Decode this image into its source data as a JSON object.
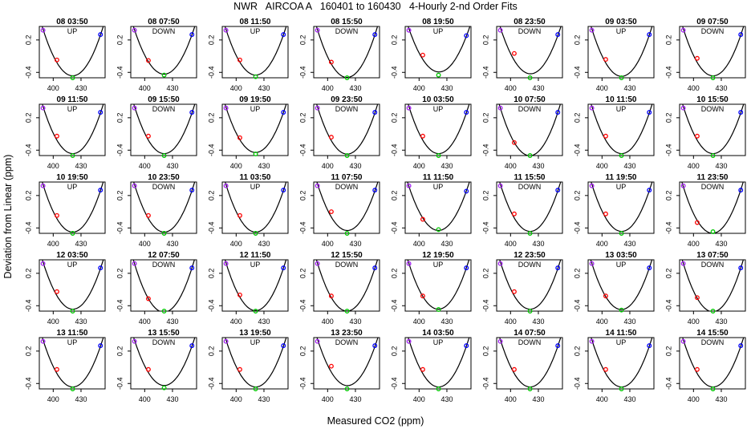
{
  "figure": {
    "title": "NWR   AIRCOA A   160401 to 160430   4-Hourly 2-nd Order Fits",
    "xlabel": "Measured CO2 (ppm)",
    "ylabel": "Deviation from Linear (ppm)"
  },
  "chart_data": {
    "type": "scatter",
    "layout": {
      "rows": 5,
      "cols": 8
    },
    "xlabel": "Measured CO2 (ppm)",
    "ylabel": "Deviation from Linear (ppm)",
    "xlim": [
      385,
      456
    ],
    "ylim": [
      -0.5,
      0.45
    ],
    "x_ticks": [
      400,
      430
    ],
    "y_ticks": [
      -0.4,
      0.2
    ],
    "x_tick_labels_shown_on_each_row": true,
    "y_tick_labels_shown_on_each_panel": true,
    "colors": {
      "standard_1": "#a020f0",
      "standard_2": "#ff0000",
      "standard_3": "#00c800",
      "standard_4": "#0000ff",
      "fit": "#000000"
    },
    "panels": [
      {
        "title": "08 03:50",
        "direction": "UP",
        "points": [
          {
            "x": 389,
            "y": 0.38
          },
          {
            "x": 404,
            "y": -0.17
          },
          {
            "x": 421,
            "y": -0.5
          },
          {
            "x": 451,
            "y": 0.3
          }
        ]
      },
      {
        "title": "08 07:50",
        "direction": "DOWN",
        "points": [
          {
            "x": 389,
            "y": 0.38
          },
          {
            "x": 404,
            "y": -0.18
          },
          {
            "x": 421,
            "y": -0.45
          },
          {
            "x": 451,
            "y": 0.3
          }
        ]
      },
      {
        "title": "08 11:50",
        "direction": "UP",
        "points": [
          {
            "x": 389,
            "y": 0.38
          },
          {
            "x": 404,
            "y": -0.17
          },
          {
            "x": 421,
            "y": -0.48
          },
          {
            "x": 451,
            "y": 0.3
          }
        ]
      },
      {
        "title": "08 15:50",
        "direction": "DOWN",
        "points": [
          {
            "x": 389,
            "y": 0.38
          },
          {
            "x": 404,
            "y": -0.21
          },
          {
            "x": 421,
            "y": -0.52
          },
          {
            "x": 451,
            "y": 0.3
          }
        ]
      },
      {
        "title": "08 19:50",
        "direction": "UP",
        "points": [
          {
            "x": 389,
            "y": 0.38
          },
          {
            "x": 404,
            "y": -0.08
          },
          {
            "x": 421,
            "y": -0.45
          },
          {
            "x": 451,
            "y": 0.28
          }
        ]
      },
      {
        "title": "08 23:50",
        "direction": "DOWN",
        "points": [
          {
            "x": 389,
            "y": 0.38
          },
          {
            "x": 404,
            "y": -0.05
          },
          {
            "x": 421,
            "y": -0.52
          },
          {
            "x": 451,
            "y": 0.3
          }
        ]
      },
      {
        "title": "09 03:50",
        "direction": "UP",
        "points": [
          {
            "x": 389,
            "y": 0.38
          },
          {
            "x": 404,
            "y": -0.16
          },
          {
            "x": 421,
            "y": -0.52
          },
          {
            "x": 451,
            "y": 0.3
          }
        ]
      },
      {
        "title": "09 07:50",
        "direction": "DOWN",
        "points": [
          {
            "x": 389,
            "y": 0.38
          },
          {
            "x": 404,
            "y": -0.14
          },
          {
            "x": 421,
            "y": -0.52
          },
          {
            "x": 451,
            "y": 0.3
          }
        ]
      },
      {
        "title": "09 11:50",
        "direction": "UP",
        "points": [
          {
            "x": 389,
            "y": 0.38
          },
          {
            "x": 404,
            "y": -0.14
          },
          {
            "x": 421,
            "y": -0.52
          },
          {
            "x": 451,
            "y": 0.3
          }
        ]
      },
      {
        "title": "09 15:50",
        "direction": "DOWN",
        "points": [
          {
            "x": 389,
            "y": 0.38
          },
          {
            "x": 404,
            "y": -0.14
          },
          {
            "x": 421,
            "y": -0.52
          },
          {
            "x": 451,
            "y": 0.3
          }
        ]
      },
      {
        "title": "09 19:50",
        "direction": "UP",
        "points": [
          {
            "x": 389,
            "y": 0.38
          },
          {
            "x": 404,
            "y": -0.17
          },
          {
            "x": 421,
            "y": -0.47
          },
          {
            "x": 451,
            "y": 0.3
          }
        ]
      },
      {
        "title": "09 23:50",
        "direction": "DOWN",
        "points": [
          {
            "x": 389,
            "y": 0.38
          },
          {
            "x": 404,
            "y": -0.16
          },
          {
            "x": 421,
            "y": -0.52
          },
          {
            "x": 451,
            "y": 0.3
          }
        ]
      },
      {
        "title": "10 03:50",
        "direction": "UP",
        "points": [
          {
            "x": 389,
            "y": 0.38
          },
          {
            "x": 404,
            "y": -0.14
          },
          {
            "x": 421,
            "y": -0.52
          },
          {
            "x": 451,
            "y": 0.3
          }
        ]
      },
      {
        "title": "10 07:50",
        "direction": "DOWN",
        "points": [
          {
            "x": 389,
            "y": 0.38
          },
          {
            "x": 404,
            "y": -0.26
          },
          {
            "x": 421,
            "y": -0.5
          },
          {
            "x": 451,
            "y": 0.3
          }
        ]
      },
      {
        "title": "10 11:50",
        "direction": "UP",
        "points": [
          {
            "x": 389,
            "y": 0.38
          },
          {
            "x": 404,
            "y": -0.14
          },
          {
            "x": 421,
            "y": -0.52
          },
          {
            "x": 451,
            "y": 0.3
          }
        ]
      },
      {
        "title": "10 15:50",
        "direction": "DOWN",
        "points": [
          {
            "x": 389,
            "y": 0.38
          },
          {
            "x": 404,
            "y": -0.14
          },
          {
            "x": 421,
            "y": -0.52
          },
          {
            "x": 451,
            "y": 0.3
          }
        ]
      },
      {
        "title": "10 19:50",
        "direction": "UP",
        "points": [
          {
            "x": 389,
            "y": 0.38
          },
          {
            "x": 404,
            "y": -0.17
          },
          {
            "x": 421,
            "y": -0.52
          },
          {
            "x": 451,
            "y": 0.3
          }
        ]
      },
      {
        "title": "10 23:50",
        "direction": "DOWN",
        "points": [
          {
            "x": 389,
            "y": 0.38
          },
          {
            "x": 404,
            "y": -0.17
          },
          {
            "x": 421,
            "y": -0.52
          },
          {
            "x": 451,
            "y": 0.3
          }
        ]
      },
      {
        "title": "11 03:50",
        "direction": "UP",
        "points": [
          {
            "x": 389,
            "y": 0.38
          },
          {
            "x": 404,
            "y": -0.17
          },
          {
            "x": 421,
            "y": -0.52
          },
          {
            "x": 451,
            "y": 0.3
          }
        ]
      },
      {
        "title": "11 07:50",
        "direction": "DOWN",
        "points": [
          {
            "x": 389,
            "y": 0.38
          },
          {
            "x": 404,
            "y": -0.1
          },
          {
            "x": 421,
            "y": -0.52
          },
          {
            "x": 451,
            "y": 0.3
          }
        ]
      },
      {
        "title": "11 11:50",
        "direction": "UP",
        "points": [
          {
            "x": 389,
            "y": 0.38
          },
          {
            "x": 404,
            "y": -0.24
          },
          {
            "x": 421,
            "y": -0.43
          },
          {
            "x": 451,
            "y": 0.28
          }
        ]
      },
      {
        "title": "11 15:50",
        "direction": "DOWN",
        "points": [
          {
            "x": 389,
            "y": 0.38
          },
          {
            "x": 404,
            "y": -0.14
          },
          {
            "x": 421,
            "y": -0.52
          },
          {
            "x": 451,
            "y": 0.3
          }
        ]
      },
      {
        "title": "11 19:50",
        "direction": "UP",
        "points": [
          {
            "x": 389,
            "y": 0.38
          },
          {
            "x": 404,
            "y": -0.14
          },
          {
            "x": 421,
            "y": -0.52
          },
          {
            "x": 451,
            "y": 0.3
          }
        ]
      },
      {
        "title": "11 23:50",
        "direction": "DOWN",
        "points": [
          {
            "x": 389,
            "y": 0.38
          },
          {
            "x": 404,
            "y": -0.3
          },
          {
            "x": 421,
            "y": -0.47
          },
          {
            "x": 451,
            "y": 0.3
          }
        ]
      },
      {
        "title": "12 03:50",
        "direction": "UP",
        "points": [
          {
            "x": 389,
            "y": 0.38
          },
          {
            "x": 404,
            "y": -0.14
          },
          {
            "x": 421,
            "y": -0.52
          },
          {
            "x": 451,
            "y": 0.3
          }
        ]
      },
      {
        "title": "12 07:50",
        "direction": "DOWN",
        "points": [
          {
            "x": 389,
            "y": 0.38
          },
          {
            "x": 404,
            "y": -0.27
          },
          {
            "x": 421,
            "y": -0.52
          },
          {
            "x": 451,
            "y": 0.3
          }
        ]
      },
      {
        "title": "12 11:50",
        "direction": "UP",
        "points": [
          {
            "x": 389,
            "y": 0.38
          },
          {
            "x": 404,
            "y": -0.2
          },
          {
            "x": 421,
            "y": -0.52
          },
          {
            "x": 451,
            "y": 0.3
          }
        ]
      },
      {
        "title": "12 15:50",
        "direction": "DOWN",
        "points": [
          {
            "x": 389,
            "y": 0.38
          },
          {
            "x": 404,
            "y": -0.22
          },
          {
            "x": 421,
            "y": -0.52
          },
          {
            "x": 451,
            "y": 0.3
          }
        ]
      },
      {
        "title": "12 19:50",
        "direction": "UP",
        "points": [
          {
            "x": 389,
            "y": 0.38
          },
          {
            "x": 404,
            "y": -0.22
          },
          {
            "x": 421,
            "y": -0.47
          },
          {
            "x": 451,
            "y": 0.3
          }
        ]
      },
      {
        "title": "12 23:50",
        "direction": "DOWN",
        "points": [
          {
            "x": 389,
            "y": 0.38
          },
          {
            "x": 404,
            "y": -0.14
          },
          {
            "x": 421,
            "y": -0.52
          },
          {
            "x": 451,
            "y": 0.3
          }
        ]
      },
      {
        "title": "13 03:50",
        "direction": "UP",
        "points": [
          {
            "x": 389,
            "y": 0.38
          },
          {
            "x": 404,
            "y": -0.22
          },
          {
            "x": 421,
            "y": -0.48
          },
          {
            "x": 451,
            "y": 0.3
          }
        ]
      },
      {
        "title": "13 07:50",
        "direction": "DOWN",
        "points": [
          {
            "x": 389,
            "y": 0.38
          },
          {
            "x": 404,
            "y": -0.25
          },
          {
            "x": 421,
            "y": -0.52
          },
          {
            "x": 451,
            "y": 0.3
          }
        ]
      },
      {
        "title": "13 11:50",
        "direction": "UP",
        "points": [
          {
            "x": 389,
            "y": 0.38
          },
          {
            "x": 404,
            "y": -0.14
          },
          {
            "x": 421,
            "y": -0.52
          },
          {
            "x": 451,
            "y": 0.3
          }
        ]
      },
      {
        "title": "13 15:50",
        "direction": "DOWN",
        "points": [
          {
            "x": 389,
            "y": 0.38
          },
          {
            "x": 404,
            "y": -0.14
          },
          {
            "x": 421,
            "y": -0.48
          },
          {
            "x": 451,
            "y": 0.3
          }
        ]
      },
      {
        "title": "13 19:50",
        "direction": "UP",
        "points": [
          {
            "x": 389,
            "y": 0.38
          },
          {
            "x": 404,
            "y": -0.14
          },
          {
            "x": 421,
            "y": -0.52
          },
          {
            "x": 451,
            "y": 0.3
          }
        ]
      },
      {
        "title": "13 23:50",
        "direction": "DOWN",
        "points": [
          {
            "x": 389,
            "y": 0.38
          },
          {
            "x": 404,
            "y": -0.08
          },
          {
            "x": 421,
            "y": -0.52
          },
          {
            "x": 451,
            "y": 0.3
          }
        ]
      },
      {
        "title": "14 03:50",
        "direction": "UP",
        "points": [
          {
            "x": 389,
            "y": 0.38
          },
          {
            "x": 404,
            "y": -0.14
          },
          {
            "x": 421,
            "y": -0.52
          },
          {
            "x": 451,
            "y": 0.3
          }
        ]
      },
      {
        "title": "14 07:50",
        "direction": "DOWN",
        "points": [
          {
            "x": 389,
            "y": 0.38
          },
          {
            "x": 404,
            "y": -0.14
          },
          {
            "x": 421,
            "y": -0.52
          },
          {
            "x": 451,
            "y": 0.3
          }
        ]
      },
      {
        "title": "14 11:50",
        "direction": "UP",
        "points": [
          {
            "x": 389,
            "y": 0.38
          },
          {
            "x": 404,
            "y": -0.14
          },
          {
            "x": 421,
            "y": -0.52
          },
          {
            "x": 451,
            "y": 0.3
          }
        ]
      },
      {
        "title": "14 15:50",
        "direction": "DOWN",
        "points": [
          {
            "x": 389,
            "y": 0.38
          },
          {
            "x": 404,
            "y": -0.14
          },
          {
            "x": 421,
            "y": -0.52
          },
          {
            "x": 451,
            "y": 0.3
          }
        ]
      }
    ]
  }
}
